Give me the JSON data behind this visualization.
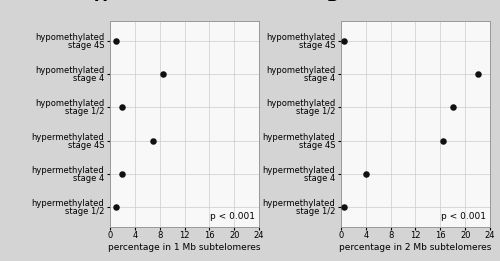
{
  "categories": [
    "hypomethylated\nstage 4S",
    "hypomethylated\nstage 4",
    "hypomethylated\nstage 1/2",
    "hypermethylated\nstage 4S",
    "hypermethylated\nstage 4",
    "hypermethylated\nstage 1/2"
  ],
  "values_A": [
    1.0,
    8.5,
    2.0,
    7.0,
    2.0,
    1.0
  ],
  "values_B": [
    0.5,
    22.0,
    18.0,
    16.5,
    4.0,
    0.5
  ],
  "xlim": [
    0,
    24
  ],
  "xticks": [
    0,
    4,
    8,
    12,
    16,
    20,
    24
  ],
  "xlabel_A": "percentage in 1 Mb subtelomeres",
  "xlabel_B": "percentage in 2 Mb subtelomeres",
  "label_A": "A",
  "label_B": "B",
  "pvalue_text": "p < 0.001",
  "dot_color": "#111111",
  "dot_size": 22,
  "grid_color": "#cccccc",
  "outer_bg": "#d4d4d4",
  "panel_bg": "#f8f8f8",
  "cat_fontsize": 6.0,
  "tick_fontsize": 6.0,
  "xlabel_fontsize": 6.5,
  "pvalue_fontsize": 6.5,
  "panel_label_fontsize": 11
}
